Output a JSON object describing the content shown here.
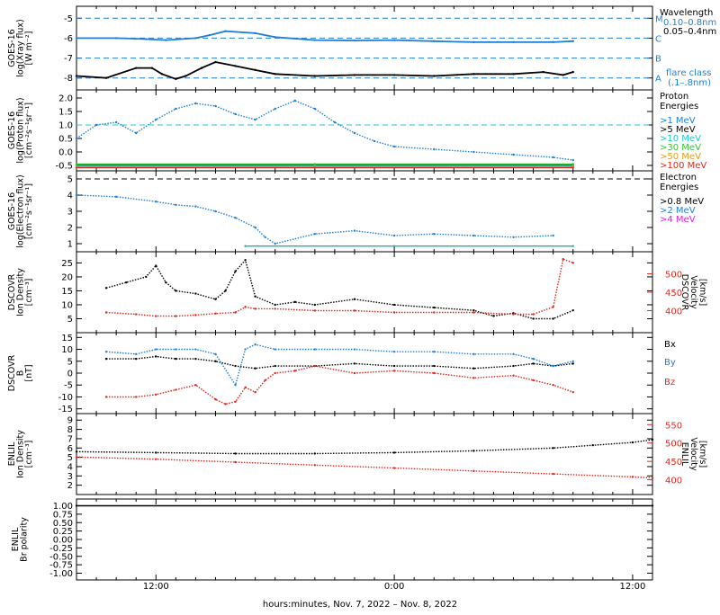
{
  "chart_data": {
    "type": "line",
    "xlabel": "hours:minutes, Nov.  7, 2022 – Nov.  8, 2022",
    "x_range_hours": [
      8.0,
      37.0
    ],
    "x_ticks": [
      {
        "hour": 12,
        "label": "12:00"
      },
      {
        "hour": 24,
        "label": "0:00"
      },
      {
        "hour": 36,
        "label": "12:00"
      }
    ],
    "panels": [
      {
        "id": "xray",
        "ylabel_lines": [
          "GOES-16",
          "log(Xray flux)",
          "[W m⁻²]"
        ],
        "ylim": [
          -8.6,
          -4.4
        ],
        "y_ticks": [
          -5,
          -6,
          -7,
          -8
        ],
        "flare_class_lines": [
          {
            "value": -5,
            "label": "M"
          },
          {
            "value": -6,
            "label": "C"
          },
          {
            "value": -7,
            "label": "B"
          },
          {
            "value": -8,
            "label": "A"
          }
        ],
        "legend_title": "Wavelength",
        "legend": [
          {
            "label": "0.10–0.8nm",
            "color": "#1f7fd6"
          },
          {
            "label": "0.05–0.4nm",
            "color": "#000000"
          }
        ],
        "note": "flare class",
        "note2": "(.1–.8nm)",
        "series": [
          {
            "name": "0.10–0.8nm",
            "color": "#1f7fd6",
            "x": [
              8.0,
              10.0,
              11.5,
              12.5,
              14.0,
              14.7,
              15.5,
              17.0,
              18.0,
              20.0,
              22.0,
              24.0,
              26.0,
              28.0,
              30.0,
              32.0,
              33.0
            ],
            "y": [
              -6.0,
              -6.0,
              -6.05,
              -6.1,
              -6.0,
              -5.85,
              -5.65,
              -5.75,
              -5.95,
              -6.1,
              -6.12,
              -6.1,
              -6.15,
              -6.2,
              -6.2,
              -6.2,
              -6.15
            ]
          },
          {
            "name": "0.05–0.4nm",
            "color": "#000000",
            "x": [
              8.0,
              9.5,
              11.0,
              11.8,
              12.3,
              13.0,
              13.5,
              14.3,
              15.0,
              16.0,
              17.0,
              18.0,
              20.0,
              22.0,
              24.0,
              26.0,
              28.0,
              30.0,
              31.5,
              32.5,
              33.0
            ],
            "y": [
              -7.9,
              -8.0,
              -7.5,
              -7.5,
              -7.8,
              -8.05,
              -7.9,
              -7.5,
              -7.2,
              -7.4,
              -7.6,
              -7.8,
              -7.9,
              -7.85,
              -7.85,
              -7.9,
              -7.8,
              -7.8,
              -7.7,
              -7.85,
              -7.7
            ]
          }
        ]
      },
      {
        "id": "proton",
        "ylabel_lines": [
          "GOES-16",
          "log(Proton flux)",
          "[cm⁻²s⁻¹sr⁻¹]"
        ],
        "ylim": [
          -0.7,
          2.3
        ],
        "y_ticks": [
          2.0,
          1.5,
          1.0,
          0.5,
          0.0,
          -0.5
        ],
        "legend_title": "Proton",
        "legend_title2": "Energies",
        "legend": [
          {
            "label": ">1 MeV",
            "color": "#1f7fd6"
          },
          {
            "label": ">5 MeV",
            "color": "#000000"
          },
          {
            "label": ">10 MeV",
            "color": "#22c7d6"
          },
          {
            "label": ">30 MeV",
            "color": "#3bbf3b"
          },
          {
            "label": ">50 MeV",
            "color": "#e0a020"
          },
          {
            "label": ">100 MeV",
            "color": "#e0281e"
          }
        ],
        "threshold": {
          "value": 1.0,
          "color": "#22c7d6"
        },
        "series": [
          {
            "name": ">1 MeV",
            "color": "#1f7fd6",
            "x": [
              8.0,
              9.0,
              10.0,
              11.0,
              12.0,
              13.0,
              14.0,
              15.0,
              16.0,
              17.0,
              18.0,
              19.0,
              20.0,
              21.0,
              22.0,
              23.0,
              24.0,
              26.0,
              28.0,
              30.0,
              32.0,
              33.0
            ],
            "y": [
              0.5,
              1.0,
              1.1,
              0.7,
              1.2,
              1.6,
              1.8,
              1.7,
              1.4,
              1.2,
              1.6,
              1.9,
              1.6,
              1.1,
              0.7,
              0.4,
              0.2,
              0.1,
              0.0,
              -0.1,
              -0.2,
              -0.3
            ]
          },
          {
            "name": ">5 MeV",
            "color": "#000000",
            "x": [
              8.0,
              20.0,
              33.0
            ],
            "y": [
              -0.5,
              -0.5,
              -0.5
            ]
          },
          {
            "name": ">10 MeV",
            "color": "#22c7d6",
            "x": [
              8.0,
              20.0,
              33.0
            ],
            "y": [
              -0.52,
              -0.52,
              -0.52
            ]
          },
          {
            "name": ">30 MeV",
            "color": "#3bbf3b",
            "x": [
              8.0,
              20.0,
              33.0
            ],
            "y": [
              -0.45,
              -0.45,
              -0.45
            ]
          },
          {
            "name": ">50 MeV",
            "color": "#e0a020",
            "x": [
              8.0,
              20.0,
              33.0
            ],
            "y": [
              -0.55,
              -0.55,
              -0.55
            ]
          },
          {
            "name": ">100 MeV",
            "color": "#e0281e",
            "x": [
              8.0,
              20.0,
              33.0
            ],
            "y": [
              -0.58,
              -0.58,
              -0.58
            ]
          }
        ]
      },
      {
        "id": "electron",
        "ylabel_lines": [
          "GOES-16",
          "log(Electron flux)",
          "[cm⁻²s⁻¹sr⁻¹]"
        ],
        "ylim": [
          0.5,
          5.5
        ],
        "y_ticks": [
          5,
          4,
          3,
          2,
          1
        ],
        "legend_title": "Electron",
        "legend_title2": "Energies",
        "legend": [
          {
            "label": ">0.8 MeV",
            "color": "#000000"
          },
          {
            "label": ">2 MeV",
            "color": "#1f7fd6"
          },
          {
            "label": ">4 MeV",
            "color": "#e020e0"
          }
        ],
        "threshold": {
          "value": 5.0,
          "color": "#000000"
        },
        "series": [
          {
            "name": ">2 MeV",
            "color": "#1f7fd6",
            "x": [
              8.0,
              10.0,
              12.0,
              13.0,
              14.0,
              15.0,
              16.0,
              17.0,
              17.5,
              18.0,
              20.0,
              22.0,
              24.0,
              26.0,
              28.0,
              30.0,
              32.0
            ],
            "y": [
              4.0,
              3.9,
              3.6,
              3.4,
              3.3,
              3.0,
              2.6,
              2.0,
              1.4,
              1.0,
              1.6,
              1.8,
              1.5,
              1.6,
              1.5,
              1.4,
              1.5
            ]
          },
          {
            "name": ">4 MeV",
            "color": "#22b0a0",
            "x": [
              16.5,
              24.0,
              33.0
            ],
            "y": [
              0.85,
              0.85,
              0.85
            ]
          }
        ]
      },
      {
        "id": "dscovr_density",
        "ylabel_lines": [
          "DSCOVR",
          "Ion Density",
          "[cm⁻³]"
        ],
        "ylim": [
          0,
          29
        ],
        "y_ticks": [
          25,
          20,
          15,
          10,
          5
        ],
        "right_axis": {
          "label_lines": [
            "DSCOVR",
            "Velocity",
            "[km/s]"
          ],
          "color": "#e0281e",
          "ylim": [
            340,
            560
          ],
          "y_ticks": [
            500,
            450,
            400
          ]
        },
        "series": [
          {
            "name": "Ion Density",
            "color": "#000000",
            "x": [
              9.5,
              10.5,
              11.5,
              12.0,
              12.5,
              13.0,
              14.0,
              15.0,
              15.5,
              16.0,
              16.5,
              17.0,
              18.0,
              19.0,
              20.0,
              22.0,
              24.0,
              26.0,
              28.0,
              29.0,
              30.0,
              31.0,
              32.0,
              33.0
            ],
            "y": [
              16,
              18,
              20,
              24,
              18,
              15,
              14,
              12,
              15,
              22,
              26,
              13,
              10,
              11,
              10,
              12,
              10,
              9,
              8,
              6,
              7,
              5,
              5,
              8
            ]
          },
          {
            "name": "Velocity",
            "color": "#e0281e",
            "axis": "right",
            "x": [
              9.5,
              11.0,
              12.0,
              13.0,
              14.0,
              15.0,
              16.0,
              16.5,
              17.0,
              18.0,
              20.0,
              22.0,
              24.0,
              26.0,
              28.0,
              30.0,
              31.0,
              32.0,
              32.5,
              33.0
            ],
            "y": [
              395,
              390,
              385,
              385,
              388,
              392,
              395,
              410,
              405,
              405,
              400,
              400,
              395,
              395,
              395,
              390,
              390,
              410,
              540,
              530
            ]
          }
        ]
      },
      {
        "id": "dscovr_b",
        "ylabel_lines": [
          "DSCOVR",
          "B",
          "[nT]"
        ],
        "ylim": [
          -17,
          17
        ],
        "y_ticks": [
          15,
          10,
          5,
          0,
          -5,
          -10,
          -15
        ],
        "legend": [
          {
            "label": "Bx",
            "color": "#000000"
          },
          {
            "label": "By",
            "color": "#1f7fd6"
          },
          {
            "label": "Bz",
            "color": "#e0281e"
          }
        ],
        "series": [
          {
            "name": "Bx",
            "color": "#000000",
            "x": [
              9.5,
              11.0,
              12.0,
              13.0,
              14.0,
              15.0,
              16.0,
              17.0,
              18.0,
              20.0,
              22.0,
              24.0,
              26.0,
              28.0,
              30.0,
              31.0,
              32.0,
              33.0
            ],
            "y": [
              6,
              6,
              7,
              6,
              6,
              5,
              3,
              2,
              3,
              3,
              4,
              3,
              3,
              2,
              3,
              4,
              3,
              4
            ]
          },
          {
            "name": "By",
            "color": "#1f7fd6",
            "x": [
              9.5,
              11.0,
              12.0,
              13.0,
              14.0,
              15.0,
              16.0,
              16.5,
              17.0,
              18.0,
              20.0,
              22.0,
              24.0,
              26.0,
              28.0,
              30.0,
              31.0,
              32.0,
              33.0
            ],
            "y": [
              9,
              8,
              10,
              10,
              10,
              8,
              -5,
              10,
              12,
              10,
              10,
              10,
              9,
              9,
              8,
              8,
              6,
              3,
              5
            ]
          },
          {
            "name": "Bz",
            "color": "#e0281e",
            "x": [
              9.5,
              11.0,
              12.0,
              13.0,
              14.0,
              15.0,
              15.5,
              16.0,
              16.5,
              17.0,
              17.5,
              18.0,
              19.0,
              20.0,
              22.0,
              24.0,
              26.0,
              28.0,
              30.0,
              31.0,
              32.0,
              33.0
            ],
            "y": [
              -10,
              -10,
              -9,
              -7,
              -5,
              -11,
              -13,
              -12,
              -6,
              -8,
              -3,
              0,
              1,
              3,
              0,
              1,
              0,
              -2,
              -1,
              -3,
              -5,
              -8
            ]
          }
        ]
      },
      {
        "id": "enlil_density",
        "ylabel_lines": [
          "ENLIL",
          "Ion Density",
          "[cm⁻³]"
        ],
        "ylim": [
          1,
          9.7
        ],
        "y_ticks": [
          9,
          8,
          7,
          6,
          5,
          4,
          3,
          2
        ],
        "right_axis": {
          "label_lines": [
            "ENLIL",
            "Velocity",
            "[km/s]"
          ],
          "color": "#e0281e",
          "ylim": [
            360,
            580
          ],
          "y_ticks": [
            550,
            500,
            450,
            400
          ]
        },
        "series": [
          {
            "name": "Ion Density",
            "color": "#000000",
            "x": [
              8.0,
              12.0,
              16.0,
              20.0,
              24.0,
              28.0,
              32.0,
              34.0,
              36.0,
              37.0
            ],
            "y": [
              5.6,
              5.5,
              5.4,
              5.4,
              5.5,
              5.7,
              6.0,
              6.3,
              6.6,
              6.9
            ]
          },
          {
            "name": "Velocity",
            "color": "#e0281e",
            "axis": "right",
            "x": [
              8.0,
              12.0,
              16.0,
              20.0,
              24.0,
              28.0,
              32.0,
              36.0,
              37.0
            ],
            "y": [
              462,
              456,
              448,
              440,
              432,
              424,
              416,
              408,
              405
            ]
          }
        ]
      },
      {
        "id": "enlil_polarity",
        "ylabel_lines": [
          "ENLIL",
          "Br polarity"
        ],
        "ylim": [
          -1.2,
          1.2
        ],
        "y_ticks": [
          1.0,
          0.75,
          0.5,
          0.25,
          0.0,
          -0.25,
          -0.5,
          -0.75,
          -1.0
        ],
        "series": [
          {
            "name": "Br polarity",
            "color": "#000000",
            "x": [
              8.0,
              37.0
            ],
            "y": [
              1.0,
              1.0
            ]
          }
        ]
      }
    ]
  }
}
